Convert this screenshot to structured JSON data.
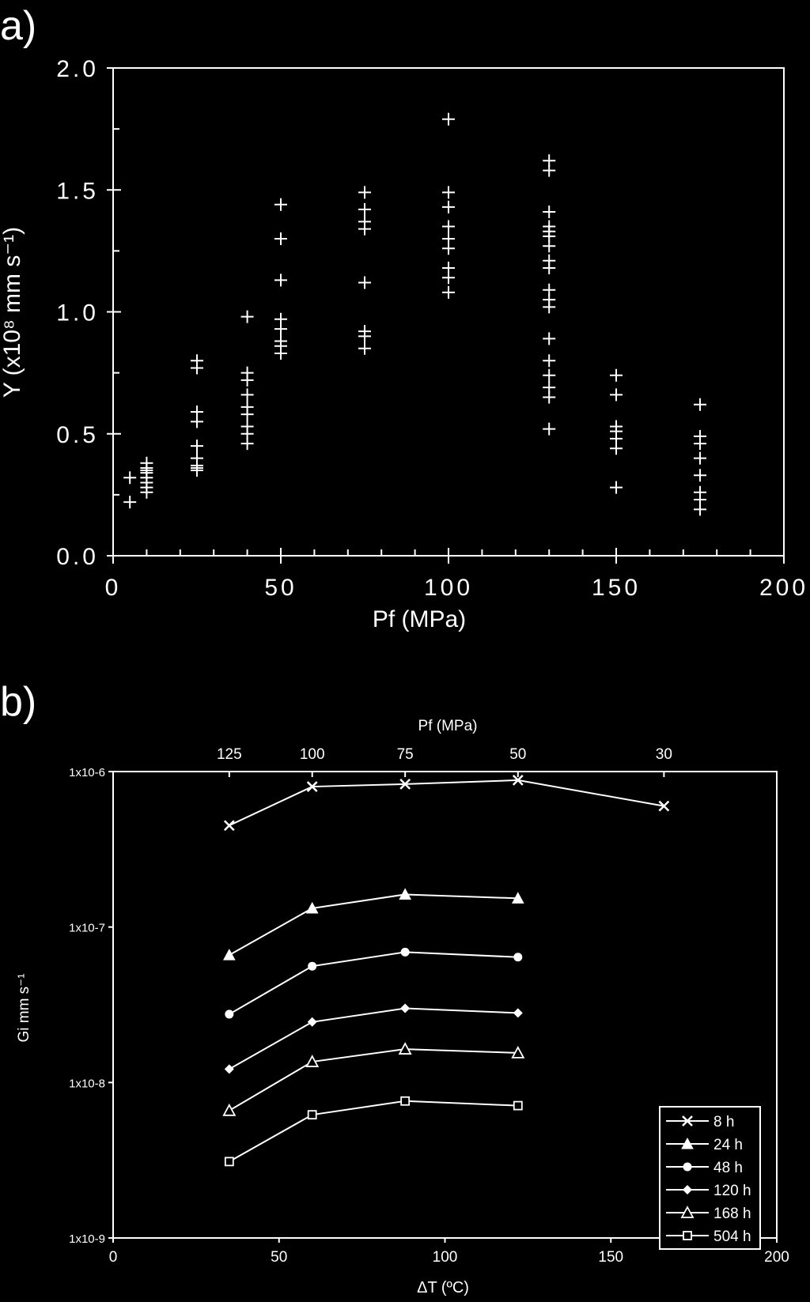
{
  "chart_data": [
    {
      "panel_label": "a)",
      "type": "scatter",
      "xlabel": "Pf (MPa)",
      "ylabel": "Y (x10⁸ mm s⁻¹)",
      "xlim": [
        0,
        200
      ],
      "ylim": [
        0.0,
        2.0
      ],
      "xticks": [
        "0",
        "50",
        "100",
        "150",
        "200"
      ],
      "xtick_values": [
        0,
        50,
        100,
        150,
        200
      ],
      "yticks": [
        "0.0",
        "0.5",
        "1.0",
        "1.5",
        "2.0"
      ],
      "ytick_values": [
        0,
        0.5,
        1.0,
        1.5,
        2.0
      ],
      "marker": "plus",
      "series": [
        {
          "x": 5,
          "y": [
            0.22,
            0.32
          ]
        },
        {
          "x": 10,
          "y": [
            0.26,
            0.28,
            0.3,
            0.32,
            0.34,
            0.35,
            0.36,
            0.38
          ]
        },
        {
          "x": 25,
          "y": [
            0.35,
            0.36,
            0.37,
            0.4,
            0.45,
            0.55,
            0.59,
            0.77,
            0.8
          ]
        },
        {
          "x": 40,
          "y": [
            0.46,
            0.5,
            0.53,
            0.58,
            0.61,
            0.66,
            0.72,
            0.75,
            0.98
          ]
        },
        {
          "x": 50,
          "y": [
            0.83,
            0.86,
            0.88,
            0.93,
            0.97,
            1.13,
            1.3,
            1.44
          ]
        },
        {
          "x": 75,
          "y": [
            0.85,
            0.9,
            0.92,
            1.12,
            1.34,
            1.37,
            1.42,
            1.49
          ]
        },
        {
          "x": 100,
          "y": [
            1.08,
            1.14,
            1.18,
            1.26,
            1.3,
            1.35,
            1.43,
            1.49,
            1.79
          ]
        },
        {
          "x": 130,
          "y": [
            0.52,
            0.65,
            0.69,
            0.74,
            0.8,
            0.89,
            1.02,
            1.05,
            1.09,
            1.18,
            1.21,
            1.27,
            1.31,
            1.33,
            1.35,
            1.41,
            1.58,
            1.62
          ]
        },
        {
          "x": 150,
          "y": [
            0.28,
            0.44,
            0.48,
            0.51,
            0.53,
            0.66,
            0.74
          ]
        },
        {
          "x": 175,
          "y": [
            0.19,
            0.23,
            0.26,
            0.33,
            0.4,
            0.46,
            0.49,
            0.62
          ]
        }
      ]
    },
    {
      "panel_label": "b)",
      "type": "line",
      "xlabel": "ΔT (ºC)",
      "ylabel": "Gi  mm s⁻¹",
      "top_axis_label": "Pf (MPa)",
      "top_axis": [
        {
          "label": "125",
          "x": 35
        },
        {
          "label": "100",
          "x": 60
        },
        {
          "label": "75",
          "x": 88
        },
        {
          "label": "50",
          "x": 122
        },
        {
          "label": "30",
          "x": 166
        }
      ],
      "xlim": [
        0,
        200
      ],
      "xticks": [
        "0",
        "50",
        "100",
        "150",
        "200"
      ],
      "xtick_values": [
        0,
        50,
        100,
        150,
        200
      ],
      "ylog_range": [
        -9,
        -6
      ],
      "yticks": [
        "1x10-6",
        "1x10-7",
        "1x10-8",
        "1x10-9"
      ],
      "ytick_exponents": [
        -6,
        -7,
        -8,
        -9
      ],
      "legend_position": "bottom-right",
      "series": [
        {
          "name": "8 h",
          "marker": "x",
          "x": [
            35,
            60,
            88,
            122,
            166
          ],
          "values": [
            4.5e-07,
            8e-07,
            8.3e-07,
            8.8e-07,
            6e-07
          ]
        },
        {
          "name": "24 h",
          "marker": "triangle-filled",
          "x": [
            35,
            60,
            88,
            122
          ],
          "values": [
            6.6e-08,
            1.32e-07,
            1.62e-07,
            1.53e-07
          ]
        },
        {
          "name": "48 h",
          "marker": "circle-filled",
          "x": [
            35,
            60,
            88,
            122
          ],
          "values": [
            2.75e-08,
            5.6e-08,
            6.9e-08,
            6.4e-08
          ]
        },
        {
          "name": "120 h",
          "marker": "diamond-filled",
          "x": [
            35,
            60,
            88,
            122
          ],
          "values": [
            1.22e-08,
            2.45e-08,
            3e-08,
            2.8e-08
          ]
        },
        {
          "name": "168 h",
          "marker": "triangle-open",
          "x": [
            35,
            60,
            88,
            122
          ],
          "values": [
            6.6e-09,
            1.36e-08,
            1.64e-08,
            1.55e-08
          ]
        },
        {
          "name": "504 h",
          "marker": "square-open",
          "x": [
            35,
            60,
            88,
            122
          ],
          "values": [
            3.1e-09,
            6.2e-09,
            7.6e-09,
            7.1e-09
          ]
        }
      ]
    }
  ]
}
